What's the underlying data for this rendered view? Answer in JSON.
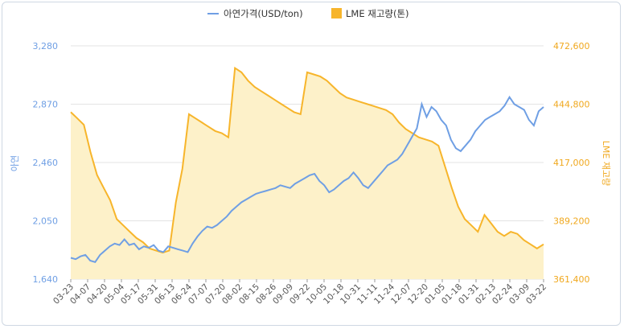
{
  "chart_data": {
    "type": "line",
    "legend": {
      "placement": "top-center"
    },
    "colors": {
      "zinc": "#6f9fe4",
      "stock_line": "#f7b52b",
      "stock_fill": "#fdf1c9",
      "grid": "#e3e3e3",
      "left_axis": "#6f9fe4",
      "right_axis": "#f0a81e"
    },
    "y_left": {
      "label": "아연",
      "ylim": [
        1640,
        3280
      ],
      "ticks": [
        "1,640",
        "2,050",
        "2,460",
        "2,870",
        "3,280"
      ]
    },
    "y_right": {
      "label": "LME 재고량",
      "ylim": [
        361400,
        472600
      ],
      "ticks": [
        "361,400",
        "389,200",
        "417,000",
        "444,800",
        "472,600"
      ]
    },
    "x_ticks": [
      "03-23",
      "04-07",
      "04-20",
      "05-04",
      "05-17",
      "05-31",
      "06-13",
      "06-24",
      "07-07",
      "07-20",
      "08-02",
      "08-15",
      "08-26",
      "09-09",
      "09-22",
      "10-05",
      "10-18",
      "10-31",
      "11-11",
      "11-24",
      "12-07",
      "12-20",
      "01-05",
      "01-18",
      "01-31",
      "02-13",
      "02-24",
      "03-09",
      "03-22"
    ],
    "series": [
      {
        "name": "아연가격(USD/ton)",
        "axis": "left",
        "values": [
          1790,
          1780,
          1800,
          1810,
          1770,
          1760,
          1810,
          1840,
          1870,
          1890,
          1880,
          1920,
          1880,
          1890,
          1850,
          1870,
          1860,
          1880,
          1840,
          1830,
          1870,
          1860,
          1850,
          1840,
          1830,
          1890,
          1940,
          1980,
          2010,
          2000,
          2020,
          2050,
          2080,
          2120,
          2150,
          2180,
          2200,
          2220,
          2240,
          2250,
          2260,
          2270,
          2280,
          2300,
          2290,
          2280,
          2310,
          2330,
          2350,
          2370,
          2380,
          2330,
          2300,
          2250,
          2270,
          2300,
          2330,
          2350,
          2390,
          2350,
          2300,
          2280,
          2320,
          2360,
          2400,
          2440,
          2460,
          2480,
          2520,
          2580,
          2640,
          2700,
          2870,
          2780,
          2850,
          2820,
          2760,
          2720,
          2620,
          2560,
          2540,
          2580,
          2620,
          2680,
          2720,
          2760,
          2780,
          2800,
          2820,
          2860,
          2920,
          2870,
          2850,
          2830,
          2760,
          2720,
          2820,
          2850
        ]
      },
      {
        "name": "LME 재고량(톤)",
        "axis": "right",
        "values": [
          441000,
          438000,
          435000,
          422000,
          411000,
          405000,
          399000,
          390000,
          387000,
          384000,
          381000,
          379000,
          376000,
          375000,
          374000,
          375000,
          398000,
          414000,
          440000,
          438000,
          436000,
          434000,
          432000,
          431000,
          429000,
          462000,
          460000,
          456000,
          453000,
          451000,
          449000,
          447000,
          445000,
          443000,
          441000,
          440000,
          460000,
          459000,
          458000,
          456000,
          453000,
          450000,
          448000,
          447000,
          446000,
          445000,
          444000,
          443000,
          442000,
          440000,
          436000,
          433000,
          431000,
          429000,
          428000,
          427000,
          425000,
          415000,
          405000,
          396000,
          390000,
          387000,
          384000,
          392000,
          388000,
          384000,
          382000,
          384000,
          383000,
          380000,
          378000,
          376000,
          378000
        ]
      }
    ]
  }
}
